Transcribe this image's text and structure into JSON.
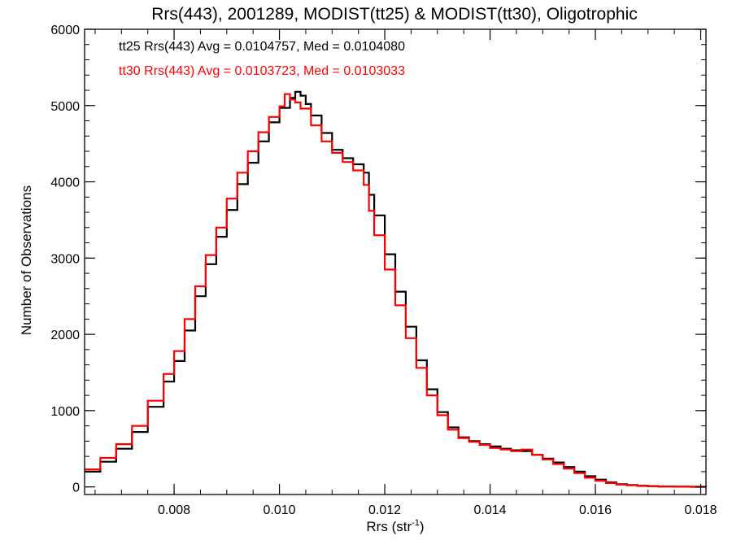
{
  "chart_data": {
    "type": "line",
    "step": true,
    "title": "Rrs(443), 2001289, MODIST(tt25) & MODIST(tt30), Oligotrophic",
    "xlabel_main": "Rrs (str",
    "xlabel_sup": "-1",
    "xlabel_end": ")",
    "ylabel": "Number of Observations",
    "xlim": [
      0.0063,
      0.0181
    ],
    "ylim": [
      -100,
      6000
    ],
    "x_ticks": [
      {
        "value": 0.008,
        "label": "0.008"
      },
      {
        "value": 0.01,
        "label": "0.010"
      },
      {
        "value": 0.012,
        "label": "0.012"
      },
      {
        "value": 0.014,
        "label": "0.014"
      },
      {
        "value": 0.016,
        "label": "0.016"
      },
      {
        "value": 0.018,
        "label": "0.018"
      }
    ],
    "y_ticks": [
      {
        "value": 0,
        "label": "0"
      },
      {
        "value": 1000,
        "label": "1000"
      },
      {
        "value": 2000,
        "label": "2000"
      },
      {
        "value": 3000,
        "label": "3000"
      },
      {
        "value": 4000,
        "label": "4000"
      },
      {
        "value": 5000,
        "label": "5000"
      },
      {
        "value": 6000,
        "label": "6000"
      }
    ],
    "x_minor_step": 0.0005,
    "y_minor_step": 200,
    "series": [
      {
        "name": "tt25",
        "color": "#000000",
        "legend": "tt25 Rrs(443) Avg = 0.0104757, Med = 0.0104080",
        "x": [
          0.0063,
          0.0066,
          0.0069,
          0.0072,
          0.0075,
          0.0078,
          0.008,
          0.0082,
          0.0084,
          0.0086,
          0.0088,
          0.009,
          0.0092,
          0.0094,
          0.0096,
          0.0098,
          0.01,
          0.0102,
          0.0103,
          0.0104,
          0.0105,
          0.0106,
          0.0108,
          0.011,
          0.0112,
          0.0114,
          0.0116,
          0.0117,
          0.0118,
          0.012,
          0.0122,
          0.0124,
          0.0126,
          0.0128,
          0.013,
          0.0132,
          0.0134,
          0.0136,
          0.0138,
          0.014,
          0.0142,
          0.0144,
          0.0146,
          0.0148,
          0.015,
          0.0152,
          0.0154,
          0.0156,
          0.0158,
          0.016,
          0.0162,
          0.0164,
          0.0166,
          0.0168,
          0.017,
          0.0172,
          0.0175,
          0.0178,
          0.0181
        ],
        "y": [
          200,
          330,
          500,
          720,
          1050,
          1380,
          1650,
          2050,
          2500,
          2920,
          3280,
          3630,
          3970,
          4250,
          4530,
          4780,
          4970,
          5100,
          5180,
          5130,
          5020,
          4870,
          4640,
          4420,
          4310,
          4230,
          4120,
          3830,
          3560,
          3050,
          2560,
          2100,
          1660,
          1280,
          980,
          780,
          650,
          600,
          560,
          530,
          500,
          480,
          470,
          420,
          370,
          320,
          260,
          200,
          140,
          95,
          60,
          35,
          25,
          15,
          10,
          6,
          3,
          1,
          0
        ]
      },
      {
        "name": "tt30",
        "color": "#ff0000",
        "legend": "tt30 Rrs(443) Avg = 0.0103723, Med = 0.0103033",
        "x": [
          0.0063,
          0.0066,
          0.0069,
          0.0072,
          0.0075,
          0.0078,
          0.008,
          0.0082,
          0.0084,
          0.0086,
          0.0088,
          0.009,
          0.0092,
          0.0094,
          0.0096,
          0.0098,
          0.01,
          0.0101,
          0.0102,
          0.0103,
          0.0104,
          0.0106,
          0.0108,
          0.011,
          0.0112,
          0.0114,
          0.0116,
          0.0117,
          0.0118,
          0.012,
          0.0122,
          0.0124,
          0.0126,
          0.0128,
          0.013,
          0.0132,
          0.0134,
          0.0136,
          0.0138,
          0.014,
          0.0142,
          0.0144,
          0.0146,
          0.0148,
          0.015,
          0.0152,
          0.0154,
          0.0156,
          0.0158,
          0.016,
          0.0162,
          0.0164,
          0.0166,
          0.0168,
          0.017,
          0.0172,
          0.0175,
          0.0178,
          0.0181
        ],
        "y": [
          230,
          380,
          560,
          800,
          1130,
          1480,
          1780,
          2200,
          2630,
          3040,
          3400,
          3780,
          4120,
          4400,
          4650,
          4850,
          4990,
          5150,
          5080,
          5040,
          4960,
          4740,
          4530,
          4380,
          4260,
          4150,
          3960,
          3620,
          3300,
          2850,
          2380,
          1950,
          1560,
          1200,
          940,
          750,
          640,
          590,
          550,
          510,
          490,
          470,
          490,
          420,
          360,
          300,
          240,
          180,
          120,
          80,
          50,
          30,
          20,
          12,
          8,
          5,
          2,
          1,
          0
        ]
      }
    ]
  }
}
